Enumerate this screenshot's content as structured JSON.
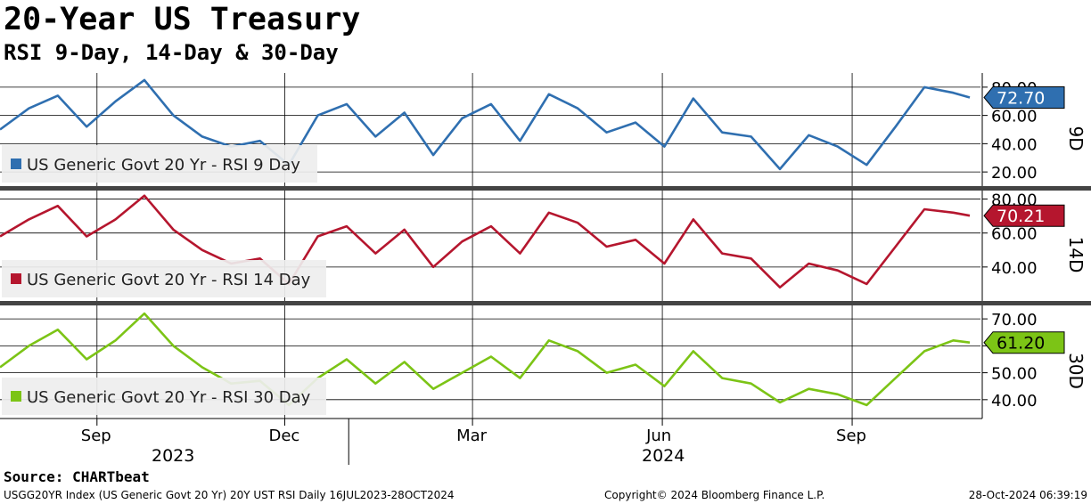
{
  "title": "20-Year US Treasury",
  "subtitle": "RSI 9-Day, 14-Day & 30-Day",
  "source": "Source: CHARTbeat",
  "footer": {
    "left": "USGG20YR Index (US Generic Govt 20 Yr) 20Y UST RSI  Daily 16JUL2023-28OCT2024",
    "center": "Copyright© 2024 Bloomberg Finance L.P.",
    "right": "28-Oct-2024 06:39:19"
  },
  "x_axis": {
    "months": [
      "Sep",
      "Dec",
      "Mar",
      "Jun",
      "Sep"
    ],
    "years": [
      "2023",
      "2024"
    ]
  },
  "chart_data": [
    {
      "type": "line",
      "panel_label": "9D",
      "legend": "US Generic Govt 20 Yr - RSI 9 Day",
      "color": "#2f6fb0",
      "last_value": "72.70",
      "ylim": [
        10,
        90
      ],
      "yticks": [
        "20.00",
        "40.00",
        "60.00",
        "80.00"
      ],
      "x_range": [
        "2023-07-16",
        "2024-10-28"
      ],
      "x": [
        "2023-07-16",
        "2023-07-30",
        "2023-08-13",
        "2023-08-27",
        "2023-09-10",
        "2023-09-24",
        "2023-10-08",
        "2023-10-22",
        "2023-11-05",
        "2023-11-19",
        "2023-12-03",
        "2023-12-17",
        "2023-12-31",
        "2024-01-14",
        "2024-01-28",
        "2024-02-11",
        "2024-02-25",
        "2024-03-10",
        "2024-03-24",
        "2024-04-07",
        "2024-04-21",
        "2024-05-05",
        "2024-05-19",
        "2024-06-02",
        "2024-06-16",
        "2024-06-30",
        "2024-07-14",
        "2024-07-28",
        "2024-08-11",
        "2024-08-25",
        "2024-09-08",
        "2024-09-22",
        "2024-10-06",
        "2024-10-20",
        "2024-10-28"
      ],
      "values": [
        50,
        65,
        74,
        52,
        70,
        85,
        60,
        45,
        38,
        42,
        25,
        60,
        68,
        45,
        62,
        32,
        58,
        68,
        42,
        75,
        65,
        48,
        55,
        38,
        72,
        48,
        45,
        22,
        46,
        38,
        25,
        52,
        80,
        76,
        72.7
      ]
    },
    {
      "type": "line",
      "panel_label": "14D",
      "legend": "US Generic Govt 20 Yr - RSI 14 Day",
      "color": "#b5162e",
      "last_value": "70.21",
      "ylim": [
        20,
        85
      ],
      "yticks": [
        "40.00",
        "60.00",
        "80.00"
      ],
      "x_range": [
        "2023-07-16",
        "2024-10-28"
      ],
      "x": [
        "2023-07-16",
        "2023-07-30",
        "2023-08-13",
        "2023-08-27",
        "2023-09-10",
        "2023-09-24",
        "2023-10-08",
        "2023-10-22",
        "2023-11-05",
        "2023-11-19",
        "2023-12-03",
        "2023-12-17",
        "2023-12-31",
        "2024-01-14",
        "2024-01-28",
        "2024-02-11",
        "2024-02-25",
        "2024-03-10",
        "2024-03-24",
        "2024-04-07",
        "2024-04-21",
        "2024-05-05",
        "2024-05-19",
        "2024-06-02",
        "2024-06-16",
        "2024-06-30",
        "2024-07-14",
        "2024-07-28",
        "2024-08-11",
        "2024-08-25",
        "2024-09-08",
        "2024-09-22",
        "2024-10-06",
        "2024-10-20",
        "2024-10-28"
      ],
      "values": [
        58,
        68,
        76,
        58,
        68,
        82,
        62,
        50,
        42,
        45,
        30,
        58,
        64,
        48,
        62,
        40,
        55,
        64,
        48,
        72,
        66,
        52,
        56,
        42,
        68,
        48,
        45,
        28,
        42,
        38,
        30,
        52,
        74,
        72,
        70.21
      ]
    },
    {
      "type": "line",
      "panel_label": "30D",
      "legend": "US Generic Govt 20 Yr - RSI 30 Day",
      "color": "#7cc416",
      "last_value": "61.20",
      "ylim": [
        33,
        75
      ],
      "yticks": [
        "40.00",
        "50.00",
        "60.00",
        "70.00"
      ],
      "x_range": [
        "2023-07-16",
        "2024-10-28"
      ],
      "x": [
        "2023-07-16",
        "2023-07-30",
        "2023-08-13",
        "2023-08-27",
        "2023-09-10",
        "2023-09-24",
        "2023-10-08",
        "2023-10-22",
        "2023-11-05",
        "2023-11-19",
        "2023-12-03",
        "2023-12-17",
        "2023-12-31",
        "2024-01-14",
        "2024-01-28",
        "2024-02-11",
        "2024-02-25",
        "2024-03-10",
        "2024-03-24",
        "2024-04-07",
        "2024-04-21",
        "2024-05-05",
        "2024-05-19",
        "2024-06-02",
        "2024-06-16",
        "2024-06-30",
        "2024-07-14",
        "2024-07-28",
        "2024-08-11",
        "2024-08-25",
        "2024-09-08",
        "2024-09-22",
        "2024-10-06",
        "2024-10-20",
        "2024-10-28"
      ],
      "values": [
        52,
        60,
        66,
        55,
        62,
        72,
        60,
        52,
        46,
        47,
        38,
        48,
        55,
        46,
        54,
        44,
        50,
        56,
        48,
        62,
        58,
        50,
        53,
        45,
        58,
        48,
        46,
        39,
        44,
        42,
        38,
        48,
        58,
        62,
        61.2
      ]
    }
  ]
}
